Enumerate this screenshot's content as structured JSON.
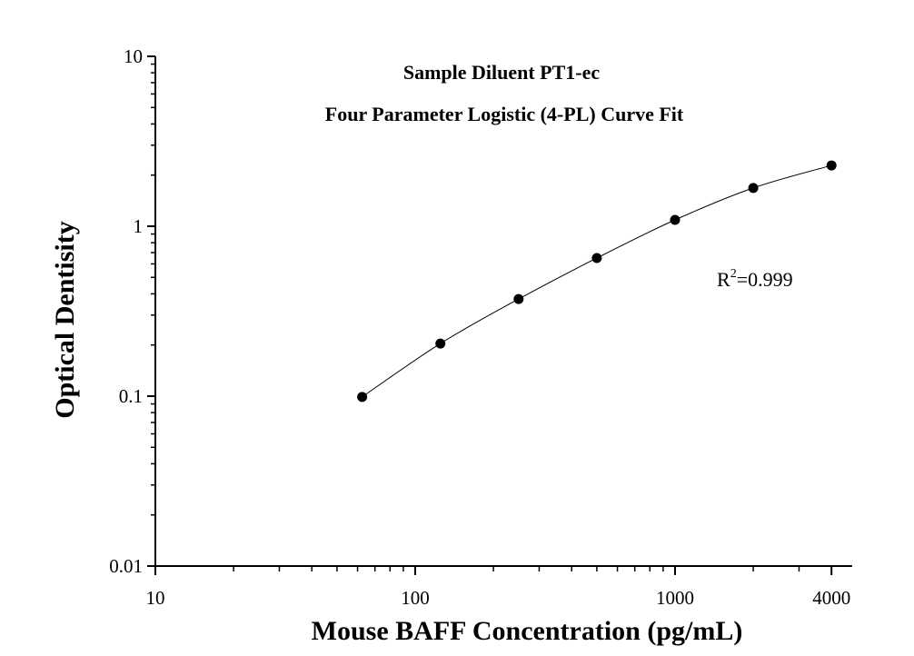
{
  "chart_data": {
    "type": "scatter",
    "title": "Sample Diluent PT1-ec",
    "subtitle": "Four Parameter Logistic (4-PL) Curve Fit",
    "xlabel": "Mouse BAFF Concentration (pg/mL)",
    "ylabel": "Optical Dentisity",
    "x_scale": "log",
    "y_scale": "log",
    "xlim": [
      10,
      4800
    ],
    "ylim": [
      0.01,
      10
    ],
    "x_ticks": [
      10,
      100,
      1000,
      4000
    ],
    "x_tick_labels": [
      "10",
      "100",
      "1000",
      "4000"
    ],
    "y_ticks": [
      0.01,
      0.1,
      1,
      10
    ],
    "y_tick_labels": [
      "0.01",
      "0.1",
      "1",
      "10"
    ],
    "grid": false,
    "series": [
      {
        "x": [
          62.5,
          125,
          250,
          500,
          1000,
          2000,
          4000
        ],
        "y": [
          0.099,
          0.204,
          0.373,
          0.65,
          1.09,
          1.68,
          2.28
        ],
        "marker": "filled-circle",
        "fit": "4-PL curve"
      }
    ],
    "annotation": {
      "prefix": "R",
      "sup": "2",
      "text": "=0.999"
    },
    "colors": {
      "marker": "#000000",
      "line": "#000000"
    }
  }
}
